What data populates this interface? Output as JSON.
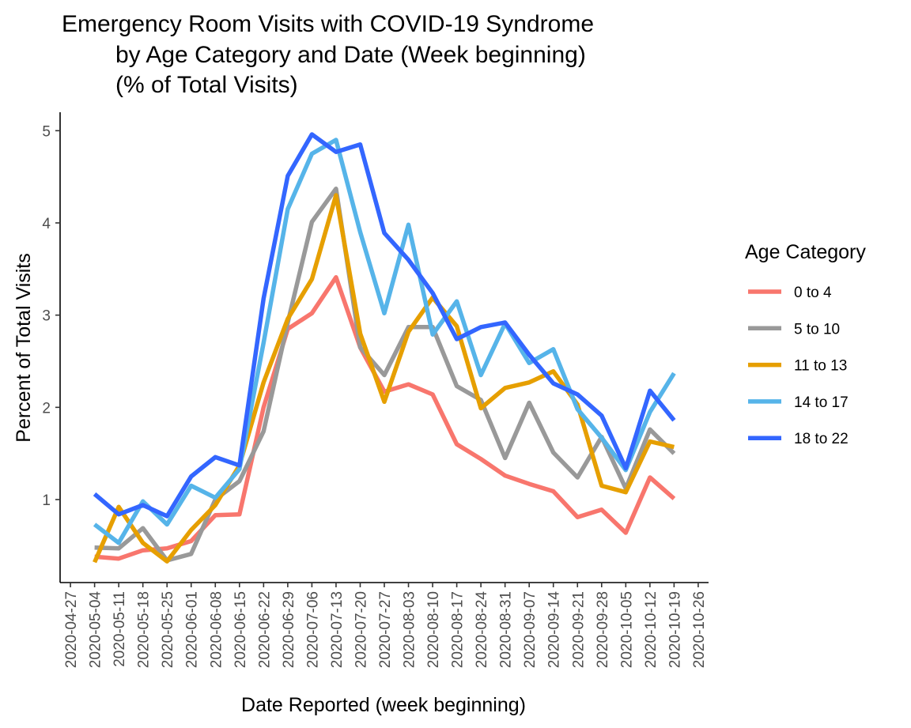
{
  "chart_data": {
    "type": "line",
    "title_lines": [
      "Emergency Room Visits with COVID-19 Syndrome",
      "by Age Category and Date (Week beginning)",
      "(% of Total Visits)"
    ],
    "xlabel": "Date Reported (week beginning)",
    "ylabel": "Percent of Total Visits",
    "x_ticks": [
      "2020-04-27",
      "2020-05-04",
      "2020-05-11",
      "2020-05-18",
      "2020-05-25",
      "2020-06-01",
      "2020-06-08",
      "2020-06-15",
      "2020-06-22",
      "2020-06-29",
      "2020-07-06",
      "2020-07-13",
      "2020-07-20",
      "2020-07-27",
      "2020-08-03",
      "2020-08-10",
      "2020-08-17",
      "2020-08-24",
      "2020-08-31",
      "2020-09-07",
      "2020-09-14",
      "2020-09-21",
      "2020-09-28",
      "2020-10-05",
      "2020-10-12",
      "2020-10-19",
      "2020-10-26"
    ],
    "x": [
      "2020-05-04",
      "2020-05-11",
      "2020-05-18",
      "2020-05-25",
      "2020-06-01",
      "2020-06-08",
      "2020-06-15",
      "2020-06-22",
      "2020-06-29",
      "2020-07-06",
      "2020-07-13",
      "2020-07-20",
      "2020-07-27",
      "2020-08-03",
      "2020-08-10",
      "2020-08-17",
      "2020-08-24",
      "2020-08-31",
      "2020-09-07",
      "2020-09-14",
      "2020-09-21",
      "2020-09-28",
      "2020-10-05",
      "2020-10-12",
      "2020-10-19"
    ],
    "y_ticks": [
      1,
      2,
      3,
      4,
      5
    ],
    "ylim": [
      0.1,
      5.2
    ],
    "grid": false,
    "legend": {
      "title": "Age Category",
      "position": "right"
    },
    "series": [
      {
        "name": "0 to 4",
        "color": "#F8766D",
        "values": [
          0.38,
          0.36,
          0.45,
          0.47,
          0.55,
          0.83,
          0.84,
          2.0,
          2.85,
          3.02,
          3.41,
          2.65,
          2.17,
          2.25,
          2.14,
          1.6,
          1.44,
          1.26,
          1.17,
          1.09,
          0.81,
          0.89,
          0.64,
          1.24,
          1.01
        ]
      },
      {
        "name": "5 to 10",
        "color": "#999999",
        "values": [
          0.48,
          0.47,
          0.69,
          0.34,
          0.41,
          1.0,
          1.2,
          1.74,
          2.92,
          4.01,
          4.37,
          2.65,
          2.35,
          2.87,
          2.87,
          2.23,
          2.08,
          1.45,
          2.05,
          1.51,
          1.24,
          1.68,
          1.12,
          1.76,
          1.5
        ]
      },
      {
        "name": "11 to 13",
        "color": "#E69F00",
        "values": [
          0.32,
          0.92,
          0.53,
          0.33,
          0.67,
          0.94,
          1.37,
          2.27,
          2.96,
          3.39,
          4.3,
          2.8,
          2.06,
          2.82,
          3.19,
          2.88,
          1.99,
          2.21,
          2.27,
          2.39,
          2.03,
          1.15,
          1.08,
          1.63,
          1.57
        ]
      },
      {
        "name": "14 to 17",
        "color": "#56B4E9",
        "values": [
          0.73,
          0.53,
          0.98,
          0.73,
          1.15,
          1.02,
          1.33,
          2.7,
          4.15,
          4.75,
          4.9,
          3.9,
          3.02,
          3.98,
          2.79,
          3.15,
          2.35,
          2.91,
          2.48,
          2.63,
          1.98,
          1.67,
          1.32,
          1.95,
          2.37
        ]
      },
      {
        "name": "18 to 22",
        "color": "#3366FF",
        "values": [
          1.06,
          0.84,
          0.94,
          0.82,
          1.25,
          1.46,
          1.37,
          3.18,
          4.51,
          4.96,
          4.77,
          4.85,
          3.89,
          3.6,
          3.24,
          2.74,
          2.87,
          2.92,
          2.57,
          2.26,
          2.14,
          1.91,
          1.34,
          2.18,
          1.86
        ]
      }
    ]
  }
}
